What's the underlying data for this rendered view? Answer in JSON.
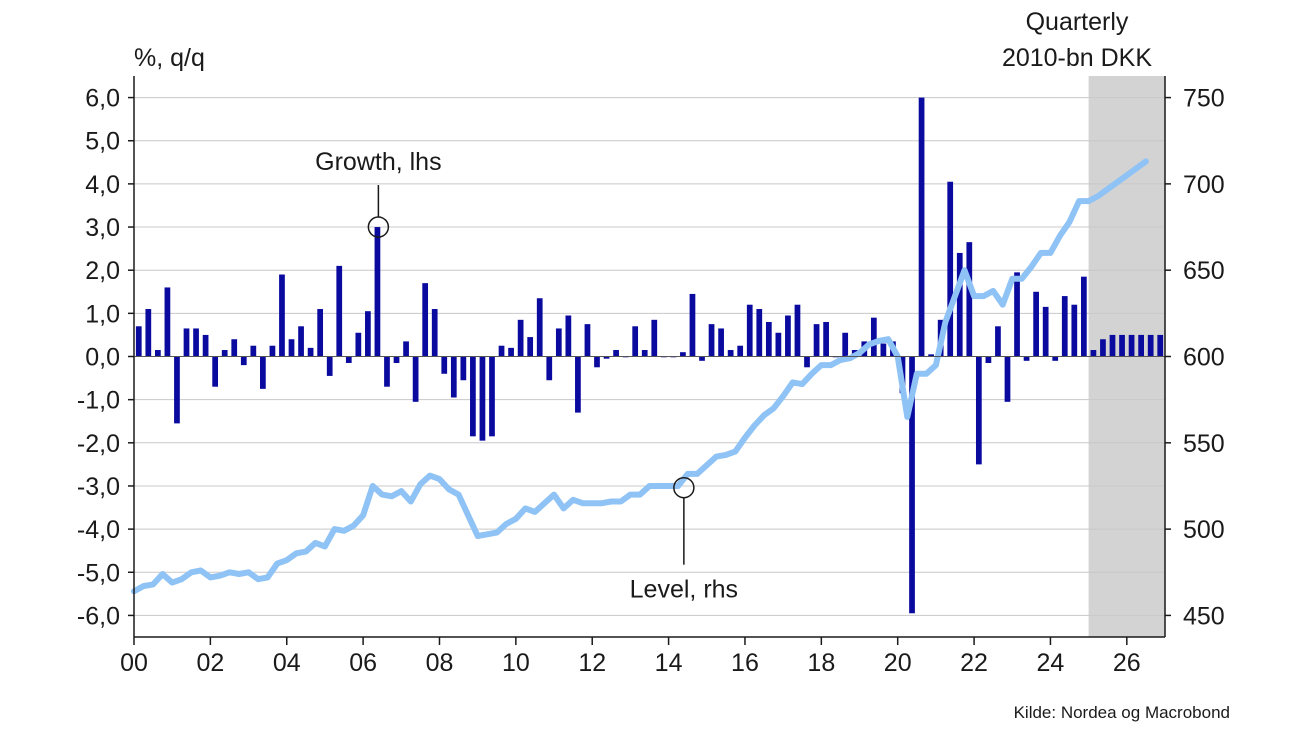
{
  "chart_data": {
    "type": "bar+line",
    "left_axis_label": "%, q/q",
    "right_axis_label": [
      "Quarterly",
      "2010-bn DKK"
    ],
    "source": "Kilde: Nordea og Macrobond",
    "x_axis": {
      "min": 2000.0,
      "max": 2027.0,
      "ticks": [
        2000,
        2002,
        2004,
        2006,
        2008,
        2010,
        2012,
        2014,
        2016,
        2018,
        2020,
        2022,
        2024,
        2026
      ],
      "tick_labels": [
        "00",
        "02",
        "04",
        "06",
        "08",
        "10",
        "12",
        "14",
        "16",
        "18",
        "20",
        "22",
        "24",
        "26"
      ]
    },
    "left_axis": {
      "min": -6.5,
      "max": 6.5,
      "ticks": [
        -6,
        -5,
        -4,
        -3,
        -2,
        -1,
        0,
        1,
        2,
        3,
        4,
        5,
        6
      ],
      "tick_labels": [
        "-6,0",
        "-5,0",
        "-4,0",
        "-3,0",
        "-2,0",
        "-1,0",
        "0,0",
        "1,0",
        "2,0",
        "3,0",
        "4,0",
        "5,0",
        "6,0"
      ]
    },
    "right_axis": {
      "min": 437.5,
      "max": 762.5,
      "ticks": [
        450,
        500,
        550,
        600,
        650,
        700,
        750
      ],
      "tick_labels": [
        "450",
        "500",
        "550",
        "600",
        "650",
        "700",
        "750"
      ]
    },
    "forecast_region": {
      "from": 2025.0,
      "to": 2027.0,
      "color": "#d3d3d3"
    },
    "grid": true,
    "colors": {
      "bars": "#0a0a9e",
      "line": "#8fc3f5",
      "grid": "#c8c8c8",
      "axis": "#1a1a1a"
    },
    "annotations": [
      {
        "label": "Growth, lhs",
        "x": 2006.4,
        "y": 3.0,
        "axis": "left"
      },
      {
        "label": "Level, rhs",
        "x": 2014.4,
        "y": 524,
        "axis": "right"
      }
    ],
    "series": [
      {
        "name": "Growth, lhs",
        "type": "bar",
        "axis": "left",
        "x_start": 2000.125,
        "x_step": 0.25,
        "values": [
          0.7,
          1.1,
          0.15,
          1.6,
          -1.55,
          0.65,
          0.65,
          0.5,
          -0.7,
          0.15,
          0.4,
          -0.2,
          0.25,
          -0.75,
          0.25,
          1.9,
          0.4,
          0.7,
          0.2,
          1.1,
          -0.45,
          2.1,
          -0.15,
          0.55,
          1.05,
          3.0,
          -0.7,
          -0.15,
          0.35,
          -1.05,
          1.7,
          1.1,
          -0.4,
          -0.95,
          -0.55,
          -1.85,
          -1.95,
          -1.85,
          0.25,
          0.2,
          0.85,
          0.45,
          1.35,
          -0.55,
          0.65,
          0.95,
          -1.3,
          0.75,
          -0.25,
          -0.05,
          0.15,
          0.0,
          0.7,
          0.15,
          0.85,
          0.0,
          0.0,
          0.1,
          1.45,
          -0.1,
          0.75,
          0.65,
          0.15,
          0.25,
          1.2,
          1.1,
          0.8,
          0.55,
          0.95,
          1.2,
          -0.25,
          0.75,
          0.8,
          0.0,
          0.55,
          0.15,
          0.35,
          0.9,
          0.3,
          0.35,
          -0.85,
          -5.95,
          6.0,
          0.05,
          0.85,
          4.05,
          2.4,
          2.65,
          -2.5,
          -0.15,
          0.7,
          -1.05,
          1.95,
          -0.1,
          1.5,
          1.15,
          -0.1,
          1.4,
          1.2,
          1.85,
          0.15,
          0.4,
          0.5,
          0.5,
          0.5,
          0.5,
          0.5,
          0.5
        ]
      },
      {
        "name": "Level, rhs",
        "type": "line",
        "axis": "right",
        "x_start": 2000.0,
        "x_step": 0.25,
        "values": [
          464,
          467,
          468,
          474,
          469,
          471,
          475,
          476,
          472,
          473,
          475,
          474,
          475,
          471,
          472,
          480,
          482,
          486,
          487,
          492,
          490,
          500,
          499,
          502,
          508,
          525,
          520,
          519,
          522,
          516,
          526,
          531,
          529,
          523,
          520,
          508,
          496,
          497,
          498,
          503,
          506,
          512,
          510,
          515,
          520,
          512,
          517,
          515,
          515,
          515,
          516,
          516,
          520,
          520,
          525,
          525,
          525,
          525,
          532,
          532,
          537,
          542,
          543,
          545,
          553,
          560,
          566,
          570,
          577,
          585,
          584,
          590,
          595,
          595,
          598,
          599,
          602,
          607,
          609,
          610,
          600,
          565,
          590,
          590,
          595,
          620,
          635,
          650,
          635,
          635,
          638,
          630,
          645,
          645,
          652,
          660,
          660,
          670,
          678,
          690,
          690,
          693,
          697,
          701,
          705,
          709,
          713
        ]
      }
    ]
  }
}
